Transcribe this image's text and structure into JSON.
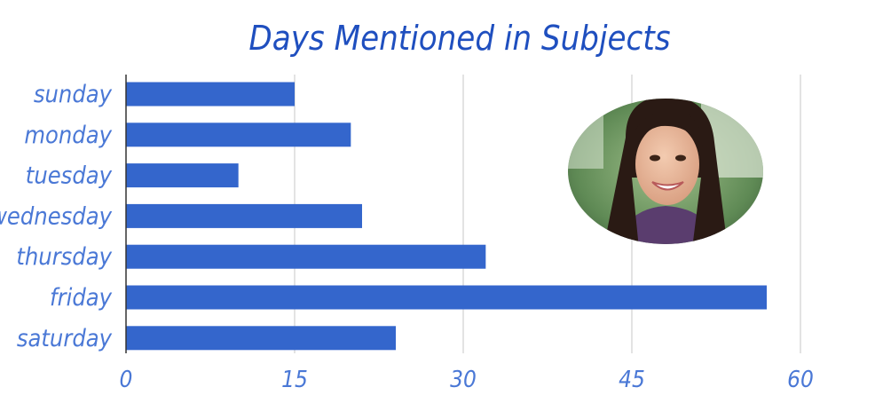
{
  "chart_data": {
    "type": "bar",
    "orientation": "horizontal",
    "title": "Days Mentioned in Subjects",
    "xlabel": "",
    "ylabel": "",
    "categories": [
      "sunday",
      "monday",
      "tuesday",
      "wednesday",
      "thursday",
      "friday",
      "saturday"
    ],
    "values": [
      15,
      20,
      10,
      21,
      32,
      57,
      24
    ],
    "xlim": [
      0,
      60
    ],
    "xticks": [
      "0",
      "15",
      "30",
      "45",
      "60"
    ],
    "grid": "vertical",
    "legend": "none",
    "bar_color": "#3466cc",
    "title_color": "#1f4fbf",
    "label_color": "#4a78d6",
    "grid_color": "#d0d0d0"
  },
  "image": {
    "icon": "photo-of-smiling-girl"
  }
}
